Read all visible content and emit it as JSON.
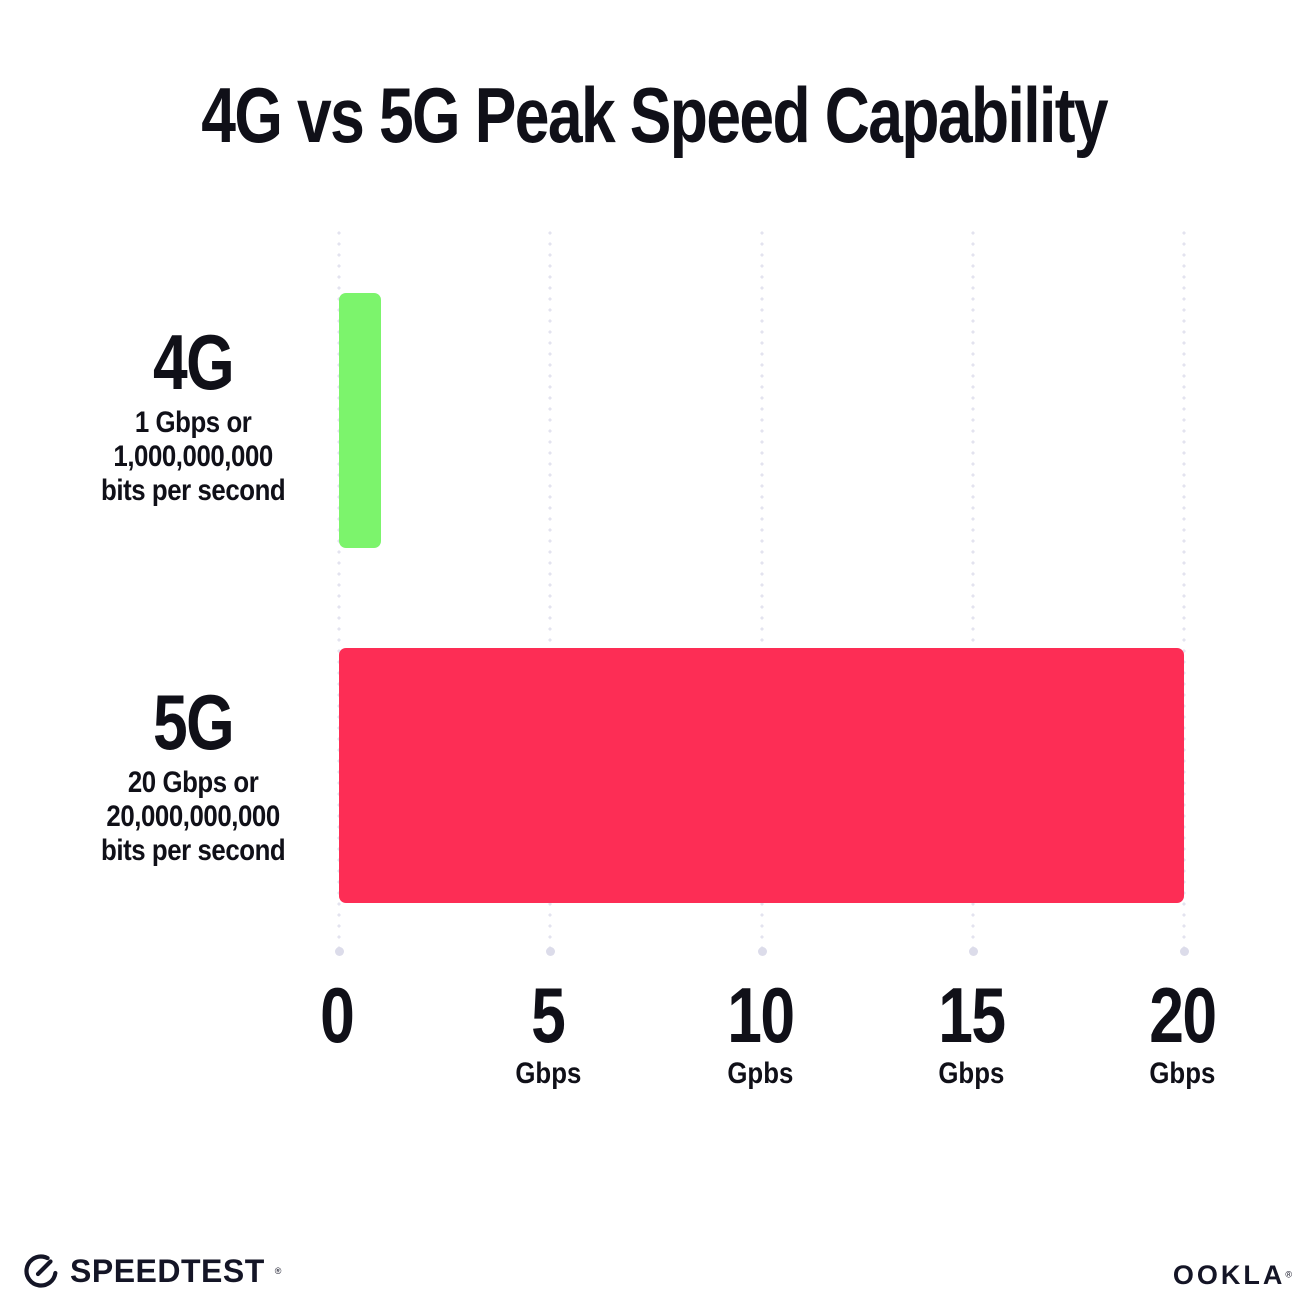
{
  "title": "4G vs 5G Peak Speed Capability",
  "chart_data": {
    "type": "bar",
    "orientation": "horizontal",
    "title": "4G vs 5G Peak Speed Capability",
    "categories": [
      "4G",
      "5G"
    ],
    "values": [
      1,
      20
    ],
    "unit": "Gbps",
    "colors": [
      "#7CF46C",
      "#FD2D55"
    ],
    "xlim": [
      0,
      20
    ],
    "grid": "vertical-dotted-lines",
    "gridline_color": "#E3E3EF",
    "x_ticks": [
      {
        "value": "0",
        "unit": ""
      },
      {
        "value": "5",
        "unit": "Gbps"
      },
      {
        "value": "10",
        "unit": "Gpbs"
      },
      {
        "value": "15",
        "unit": "Gbps"
      },
      {
        "value": "20",
        "unit": "Gbps"
      }
    ],
    "rows": [
      {
        "label": "4G",
        "sub1": "1 Gbps or",
        "sub2": "1,000,000,000",
        "sub3": "bits per second",
        "value": 1,
        "color": "#7CF46C"
      },
      {
        "label": "5G",
        "sub1": "20 Gbps or",
        "sub2": "20,000,000,000",
        "sub3": "bits per second",
        "value": 20,
        "color": "#FD2D55"
      }
    ]
  },
  "footer": {
    "speedtest": "SPEEDTEST",
    "ookla": "OOKLA",
    "trademark": "®"
  }
}
